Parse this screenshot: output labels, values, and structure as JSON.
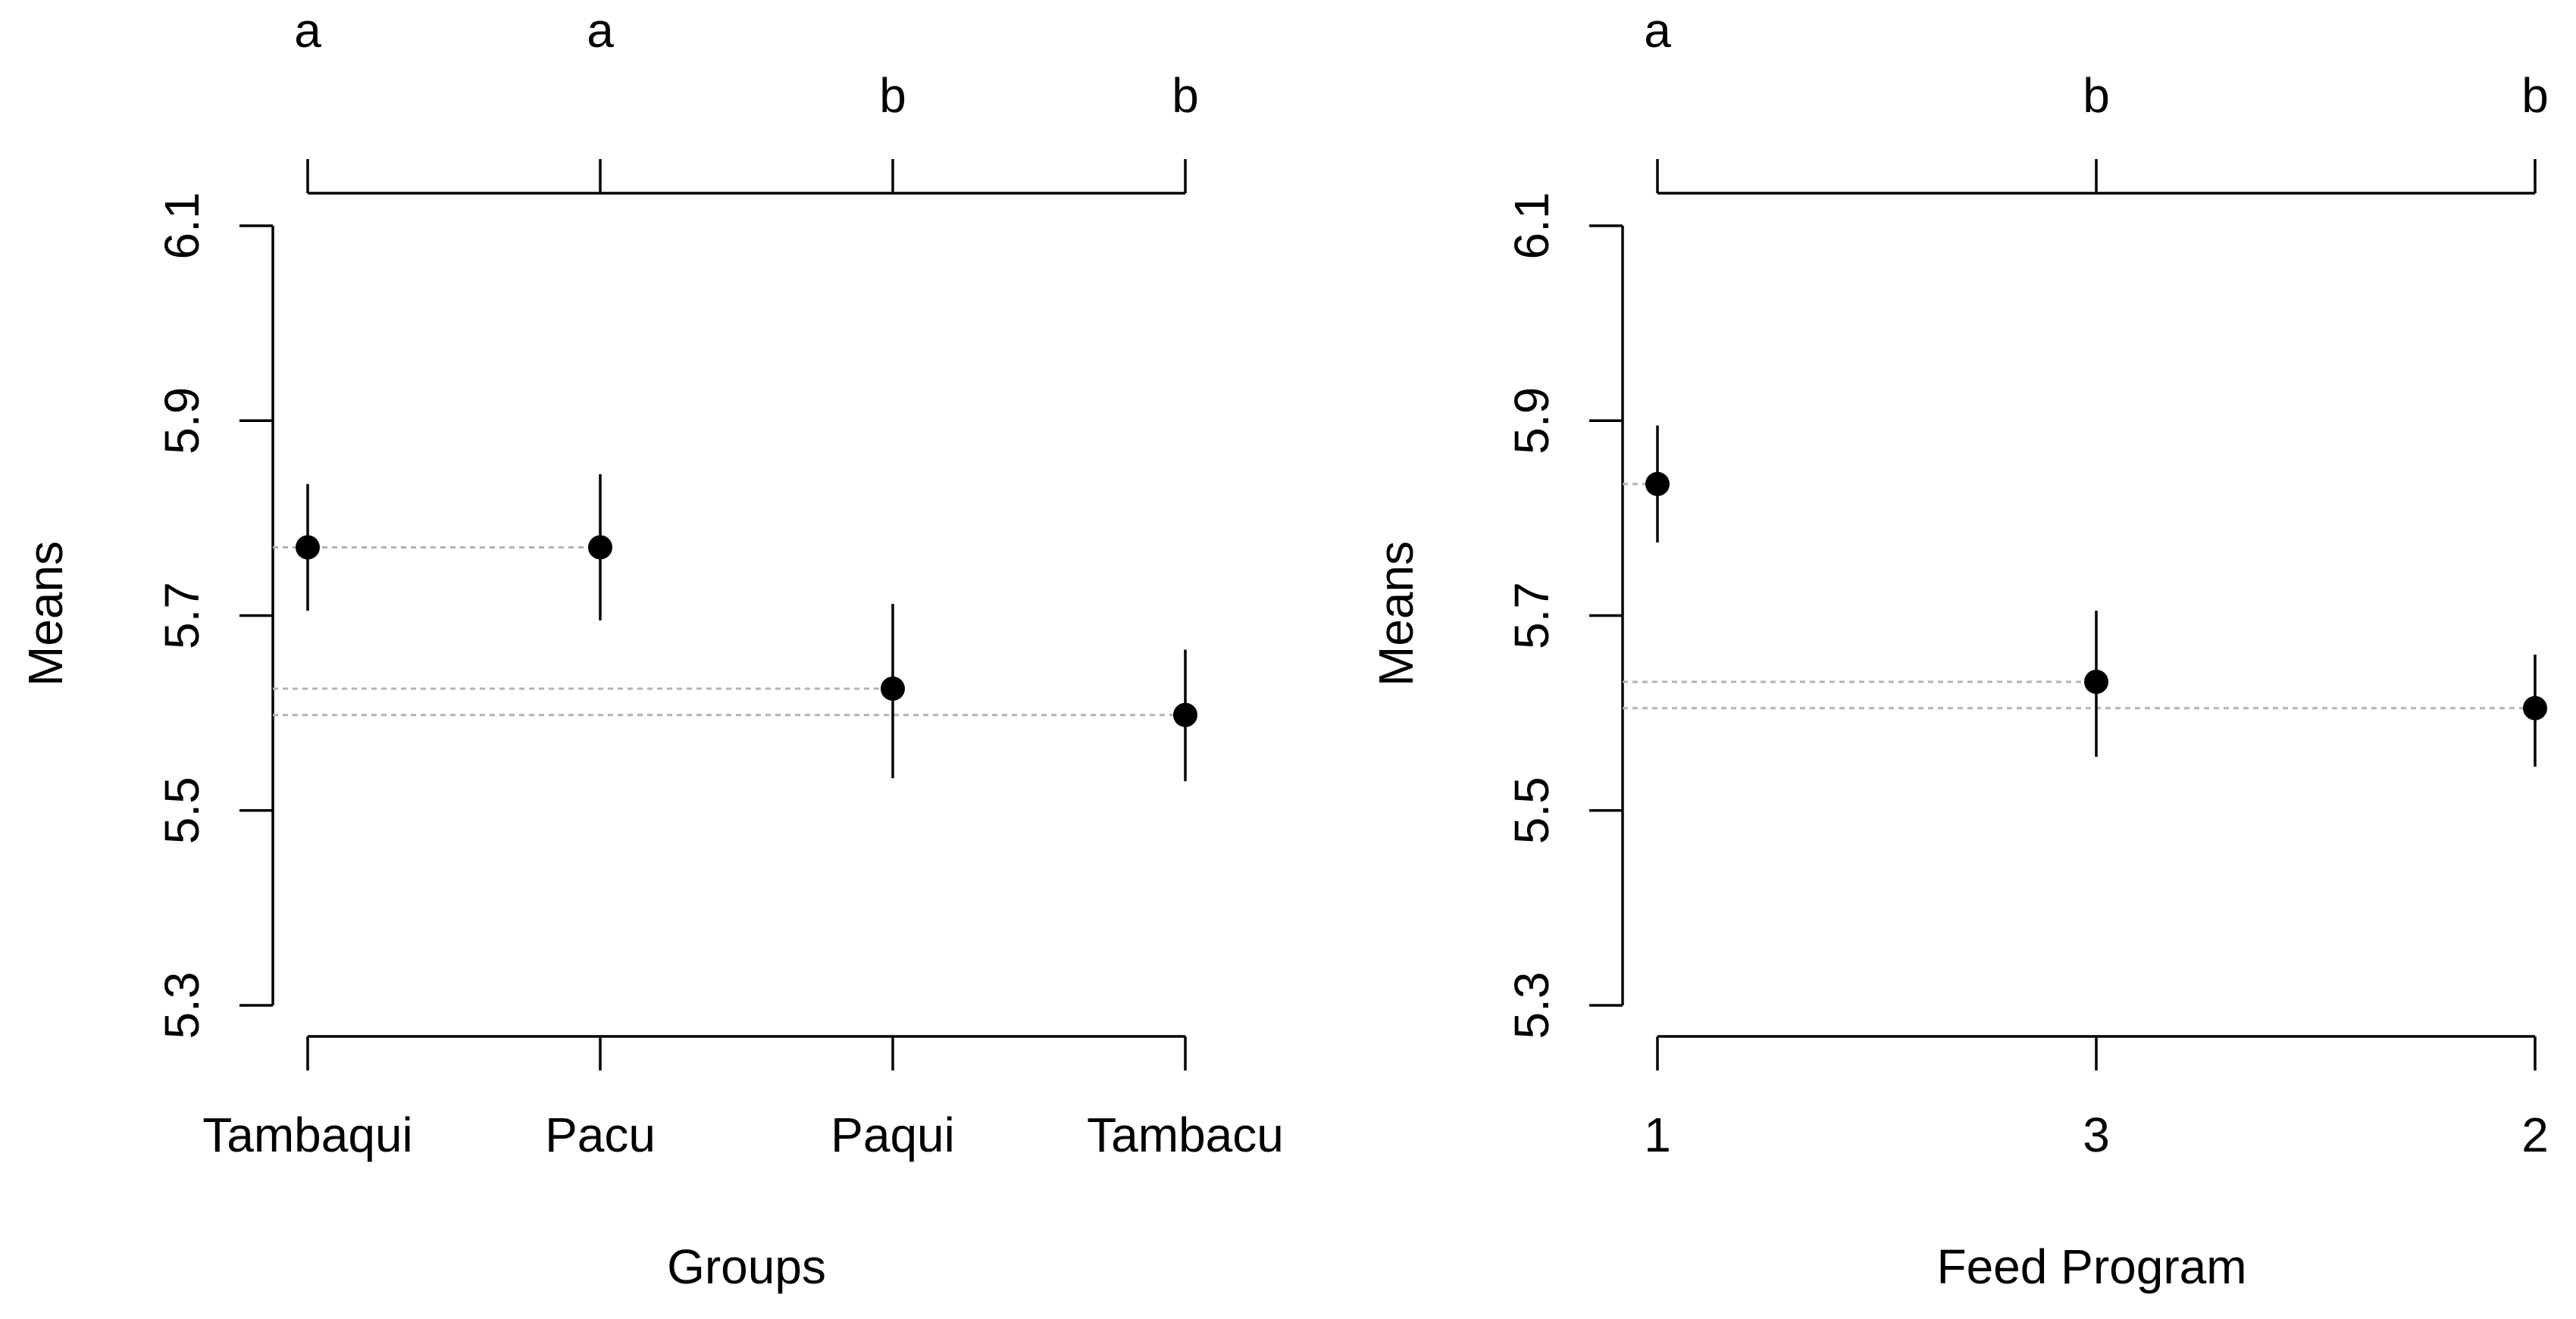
{
  "colors": {
    "points": "#000000",
    "axes": "#000000",
    "reference_lines": "#b3b3b3",
    "background": "#ffffff"
  },
  "chart_data": [
    {
      "type": "scatter",
      "subtype": "means with error bars",
      "xlabel": "Groups",
      "ylabel": "Means",
      "ylim": [
        5.3,
        6.1
      ],
      "yticks": [
        "5.3",
        "5.5",
        "5.7",
        "5.9",
        "6.1"
      ],
      "categories": [
        "Tambaqui",
        "Pacu",
        "Paqui",
        "Tambacu"
      ],
      "means": [
        5.77,
        5.77,
        5.625,
        5.598
      ],
      "error_low": [
        5.705,
        5.695,
        5.533,
        5.53
      ],
      "error_high": [
        5.835,
        5.845,
        5.712,
        5.665
      ],
      "group_letters": [
        "a",
        "a",
        "b",
        "b"
      ],
      "reference_lines": "dotted horizontal lines at each mean",
      "grid": false
    },
    {
      "type": "scatter",
      "subtype": "means with error bars",
      "xlabel": "Feed Program",
      "ylabel": "Means",
      "ylim": [
        5.3,
        6.1
      ],
      "yticks": [
        "5.3",
        "5.5",
        "5.7",
        "5.9",
        "6.1"
      ],
      "categories": [
        "1",
        "3",
        "2"
      ],
      "means": [
        5.835,
        5.632,
        5.605
      ],
      "error_low": [
        5.775,
        5.555,
        5.545
      ],
      "error_high": [
        5.895,
        5.705,
        5.66
      ],
      "group_letters": [
        "a",
        "b",
        "b"
      ],
      "reference_lines": "dotted horizontal lines at each mean",
      "grid": false
    }
  ]
}
